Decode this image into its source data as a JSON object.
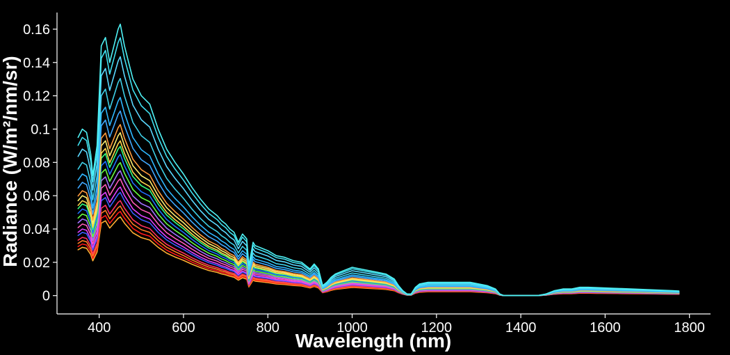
{
  "chart_data": {
    "type": "line",
    "title": "",
    "xlabel": "Wavelength (nm)",
    "ylabel": "Radiance (W/m²/nm/sr)",
    "xlim": [
      300,
      1850
    ],
    "ylim": [
      -0.011,
      0.17
    ],
    "xticks": [
      400,
      600,
      800,
      1000,
      1200,
      1400,
      1600,
      1800
    ],
    "xtick_labels": [
      "400",
      "600",
      "800",
      "1000",
      "1200",
      "1400",
      "1600",
      "1800"
    ],
    "yticks": [
      0,
      0.02,
      0.04,
      0.06,
      0.08,
      0.1,
      0.12,
      0.14,
      0.16
    ],
    "ytick_labels": [
      "0",
      "0.02",
      "0.04",
      "0.06",
      "0.08",
      "0.1",
      "0.12",
      "0.14",
      "0.16"
    ],
    "grid": false,
    "legend": "none",
    "background": "#000000",
    "axis_color": "#ffffff",
    "note_on_series": "Dozens of overlapping spectra; representative series listed, each scaled from a common spectral shape",
    "reference_shape": {
      "x": [
        350,
        360,
        370,
        380,
        385,
        395,
        405,
        415,
        425,
        435,
        445,
        450,
        460,
        470,
        480,
        500,
        520,
        540,
        560,
        580,
        600,
        620,
        640,
        660,
        680,
        690,
        700,
        710,
        720,
        730,
        740,
        750,
        755,
        760,
        765,
        770,
        780,
        800,
        820,
        840,
        860,
        880,
        900,
        910,
        920,
        930,
        940,
        950,
        960,
        980,
        1000,
        1020,
        1040,
        1060,
        1080,
        1100,
        1110,
        1120,
        1130,
        1140,
        1150,
        1160,
        1180,
        1200,
        1220,
        1240,
        1260,
        1280,
        1300,
        1320,
        1340,
        1350,
        1360,
        1380,
        1400,
        1420,
        1440,
        1460,
        1480,
        1500,
        1520,
        1540,
        1560,
        1580,
        1600,
        1620,
        1640,
        1660,
        1680,
        1700,
        1720,
        1740,
        1760,
        1775
      ],
      "y": [
        0.095,
        0.1,
        0.098,
        0.085,
        0.072,
        0.09,
        0.15,
        0.155,
        0.14,
        0.15,
        0.16,
        0.163,
        0.15,
        0.14,
        0.13,
        0.12,
        0.115,
        0.1,
        0.088,
        0.08,
        0.073,
        0.065,
        0.058,
        0.052,
        0.048,
        0.045,
        0.043,
        0.04,
        0.038,
        0.032,
        0.037,
        0.034,
        0.018,
        0.025,
        0.032,
        0.03,
        0.029,
        0.027,
        0.024,
        0.023,
        0.021,
        0.02,
        0.016,
        0.019,
        0.016,
        0.006,
        0.008,
        0.011,
        0.013,
        0.015,
        0.017,
        0.016,
        0.015,
        0.014,
        0.013,
        0.01,
        0.006,
        0.003,
        0.001,
        0.001,
        0.005,
        0.007,
        0.008,
        0.008,
        0.008,
        0.008,
        0.008,
        0.008,
        0.007,
        0.006,
        0.004,
        0.001,
        0.0,
        0.0,
        0.0,
        0.0,
        0.0,
        0.001,
        0.003,
        0.004,
        0.004,
        0.005,
        0.005,
        0.0048,
        0.0046,
        0.0044,
        0.0042,
        0.004,
        0.0038,
        0.0036,
        0.0034,
        0.0032,
        0.003,
        0.0028
      ]
    },
    "series": [
      {
        "color": "#4ff2f5",
        "scale": 1.0
      },
      {
        "color": "#3fe0f0",
        "scale": 0.95
      },
      {
        "color": "#5ad8ff",
        "scale": 0.88
      },
      {
        "color": "#3fd0e8",
        "scale": 0.8
      },
      {
        "color": "#2fb8ff",
        "scale": 0.73
      },
      {
        "color": "#40a8ff",
        "scale": 0.68
      },
      {
        "color": "#ff9a3c",
        "scale": 0.63
      },
      {
        "color": "#fff070",
        "scale": 0.6
      },
      {
        "color": "#ffd54a",
        "scale": 0.57
      },
      {
        "color": "#30ff80",
        "scale": 0.55
      },
      {
        "color": "#2070ff",
        "scale": 0.52
      },
      {
        "color": "#66ff40",
        "scale": 0.49
      },
      {
        "color": "#a070ff",
        "scale": 0.46
      },
      {
        "color": "#ff5ab8",
        "scale": 0.43
      },
      {
        "color": "#e040ff",
        "scale": 0.4
      },
      {
        "color": "#3a5cff",
        "scale": 0.38
      },
      {
        "color": "#ff3060",
        "scale": 0.35
      },
      {
        "color": "#ff7a20",
        "scale": 0.33
      },
      {
        "color": "#ff1a1a",
        "scale": 0.31
      },
      {
        "color": "#ffae30",
        "scale": 0.29
      }
    ]
  }
}
